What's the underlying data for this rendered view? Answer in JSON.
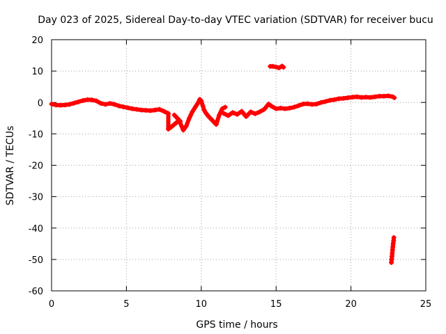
{
  "chart_data": {
    "type": "scatter",
    "title": "Day 023 of 2025, Sidereal Day-to-day VTEC variation (SDTVAR) for receiver bucu",
    "xlabel": "GPS time / hours",
    "ylabel": "SDTVAR / TECUs",
    "xlim": [
      0,
      25
    ],
    "ylim": [
      -60,
      20
    ],
    "xticks": [
      0,
      5,
      10,
      15,
      20,
      25
    ],
    "yticks": [
      -60,
      -50,
      -40,
      -30,
      -20,
      -10,
      0,
      10,
      20
    ],
    "grid": true,
    "marker": "plus",
    "series_color": "#ff0000",
    "series": [
      {
        "name": "SDTVAR",
        "points": [
          [
            0.0,
            -0.5
          ],
          [
            0.3,
            -0.8
          ],
          [
            0.6,
            -0.9
          ],
          [
            0.9,
            -0.8
          ],
          [
            1.2,
            -0.6
          ],
          [
            1.5,
            -0.2
          ],
          [
            1.8,
            0.2
          ],
          [
            2.1,
            0.6
          ],
          [
            2.4,
            0.9
          ],
          [
            2.7,
            0.8
          ],
          [
            3.0,
            0.5
          ],
          [
            3.3,
            -0.3
          ],
          [
            3.6,
            -0.6
          ],
          [
            3.9,
            -0.3
          ],
          [
            4.2,
            -0.6
          ],
          [
            4.5,
            -1.1
          ],
          [
            4.8,
            -1.4
          ],
          [
            5.1,
            -1.7
          ],
          [
            5.4,
            -2.0
          ],
          [
            5.7,
            -2.2
          ],
          [
            6.0,
            -2.4
          ],
          [
            6.3,
            -2.5
          ],
          [
            6.6,
            -2.6
          ],
          [
            6.9,
            -2.4
          ],
          [
            7.2,
            -2.2
          ],
          [
            7.5,
            -2.8
          ],
          [
            7.8,
            -3.5
          ],
          [
            7.8,
            -8.5
          ],
          [
            8.0,
            -7.8
          ],
          [
            8.2,
            -7.0
          ],
          [
            8.4,
            -6.2
          ],
          [
            8.6,
            -6.0
          ],
          [
            8.2,
            -4.0
          ],
          [
            8.5,
            -5.5
          ],
          [
            8.8,
            -8.8
          ],
          [
            9.0,
            -7.5
          ],
          [
            9.2,
            -5.0
          ],
          [
            9.4,
            -3.0
          ],
          [
            9.6,
            -1.5
          ],
          [
            9.8,
            0.0
          ],
          [
            9.9,
            1.0
          ],
          [
            10.0,
            0.5
          ],
          [
            10.1,
            -1.0
          ],
          [
            10.2,
            -2.5
          ],
          [
            10.3,
            -3.3
          ],
          [
            10.5,
            -4.5
          ],
          [
            10.7,
            -5.5
          ],
          [
            10.9,
            -6.5
          ],
          [
            11.0,
            -7.0
          ],
          [
            11.2,
            -4.0
          ],
          [
            11.4,
            -2.0
          ],
          [
            11.6,
            -1.5
          ],
          [
            11.5,
            -3.5
          ],
          [
            11.8,
            -4.2
          ],
          [
            12.1,
            -3.2
          ],
          [
            12.4,
            -3.8
          ],
          [
            12.7,
            -2.8
          ],
          [
            13.0,
            -4.5
          ],
          [
            13.3,
            -3.0
          ],
          [
            13.6,
            -3.6
          ],
          [
            13.9,
            -3.0
          ],
          [
            14.2,
            -2.2
          ],
          [
            14.5,
            -0.5
          ],
          [
            14.7,
            -1.2
          ],
          [
            15.0,
            -2.0
          ],
          [
            15.3,
            -1.8
          ],
          [
            15.6,
            -2.0
          ],
          [
            15.9,
            -1.8
          ],
          [
            16.2,
            -1.5
          ],
          [
            16.5,
            -1.0
          ],
          [
            16.8,
            -0.5
          ],
          [
            17.1,
            -0.4
          ],
          [
            17.4,
            -0.6
          ],
          [
            17.7,
            -0.5
          ],
          [
            18.0,
            0.0
          ],
          [
            18.3,
            0.3
          ],
          [
            18.6,
            0.7
          ],
          [
            18.9,
            0.9
          ],
          [
            19.2,
            1.2
          ],
          [
            19.5,
            1.3
          ],
          [
            19.8,
            1.5
          ],
          [
            20.1,
            1.7
          ],
          [
            20.4,
            1.8
          ],
          [
            20.7,
            1.6
          ],
          [
            21.0,
            1.7
          ],
          [
            21.3,
            1.6
          ],
          [
            21.6,
            1.8
          ],
          [
            21.9,
            2.0
          ],
          [
            22.2,
            2.0
          ],
          [
            22.5,
            2.1
          ],
          [
            22.8,
            1.8
          ],
          [
            22.9,
            1.5
          ],
          [
            14.6,
            11.5
          ],
          [
            14.8,
            11.5
          ],
          [
            15.0,
            11.3
          ],
          [
            15.2,
            11.0
          ],
          [
            15.4,
            11.6
          ],
          [
            15.5,
            11.2
          ],
          [
            22.7,
            -51.0
          ],
          [
            22.72,
            -50.0
          ],
          [
            22.74,
            -49.0
          ],
          [
            22.76,
            -48.0
          ],
          [
            22.78,
            -47.0
          ],
          [
            22.8,
            -46.0
          ],
          [
            22.82,
            -45.0
          ],
          [
            22.85,
            -44.0
          ],
          [
            22.87,
            -43.0
          ]
        ]
      }
    ]
  }
}
